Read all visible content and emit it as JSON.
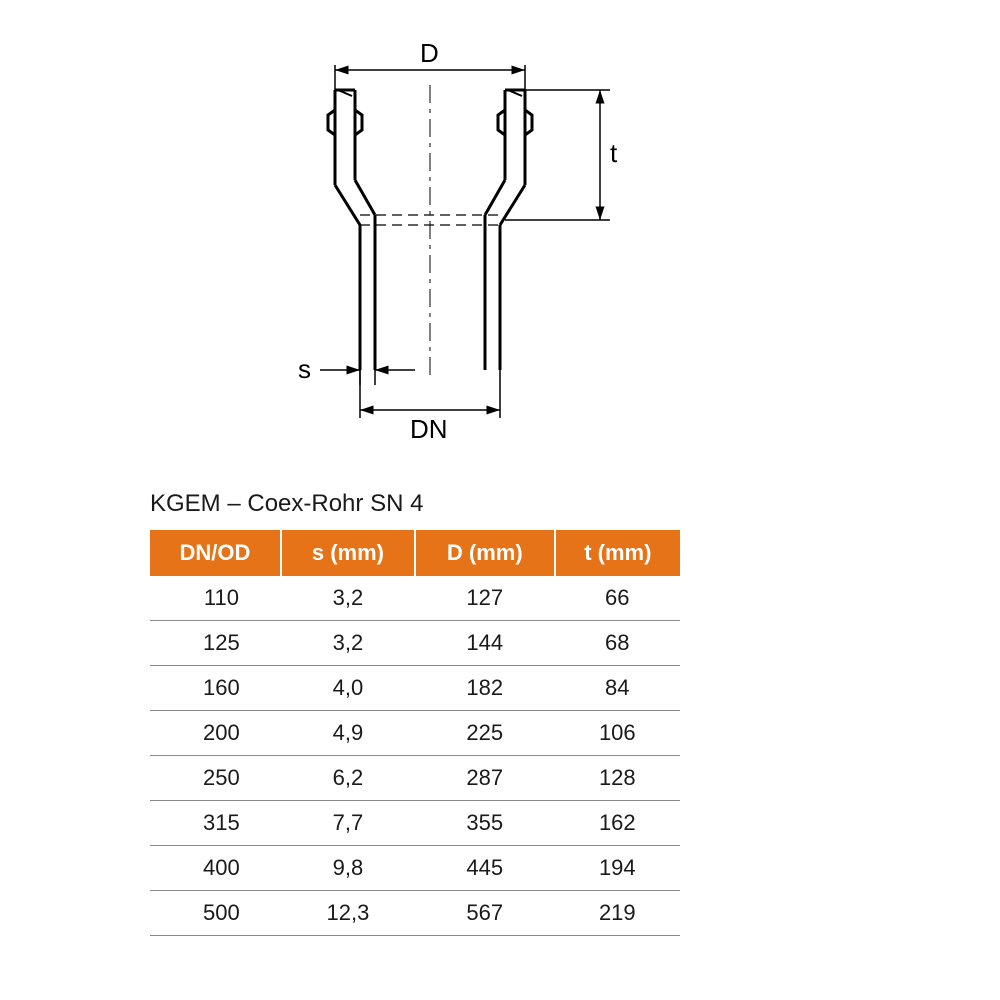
{
  "diagram": {
    "labels": {
      "D": "D",
      "t": "t",
      "s": "s",
      "DN": "DN"
    },
    "stroke_color": "#000000",
    "stroke_width_main": 3,
    "stroke_width_dim": 1.5,
    "arrow_size": 8
  },
  "table": {
    "title": "KGEM – Coex-Rohr SN 4",
    "header_bg": "#e67318",
    "header_fg": "#ffffff",
    "row_border": "#888888",
    "columns": [
      "DN/OD",
      "s (mm)",
      "D (mm)",
      "t (mm)"
    ],
    "rows": [
      [
        "110",
        "3,2",
        "127",
        "66"
      ],
      [
        "125",
        "3,2",
        "144",
        "68"
      ],
      [
        "160",
        "4,0",
        "182",
        "84"
      ],
      [
        "200",
        "4,9",
        "225",
        "106"
      ],
      [
        "250",
        "6,2",
        "287",
        "128"
      ],
      [
        "315",
        "7,7",
        "355",
        "162"
      ],
      [
        "400",
        "9,8",
        "445",
        "194"
      ],
      [
        "500",
        "12,3",
        "567",
        "219"
      ]
    ]
  }
}
